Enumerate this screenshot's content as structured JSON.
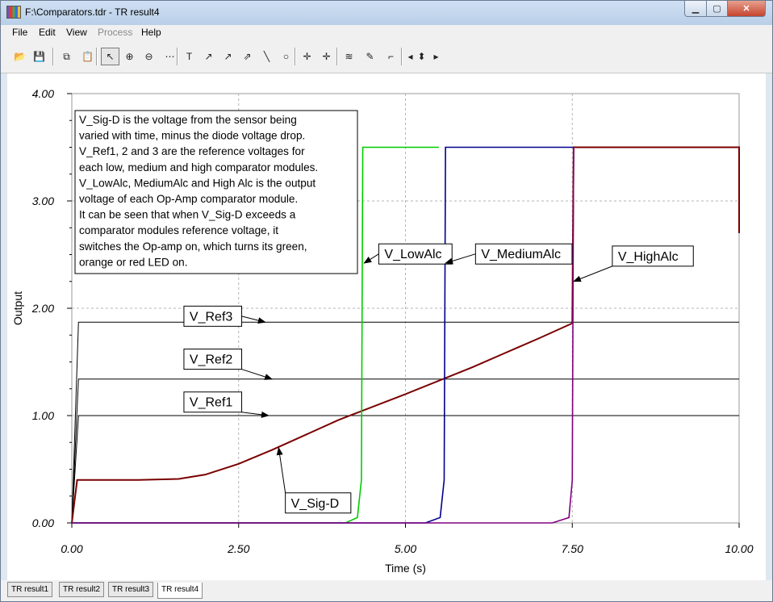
{
  "window": {
    "title": "F:\\Comparators.tdr - TR result4",
    "controls": {
      "minimize": "▁",
      "maximize": "▢",
      "close": "✕"
    }
  },
  "menu": [
    "File",
    "Edit",
    "View",
    "Process",
    "Help"
  ],
  "menu_disabled": [
    "Process"
  ],
  "toolbar": [
    {
      "name": "open-icon",
      "glyph": "📂"
    },
    {
      "name": "save-icon",
      "glyph": "💾"
    },
    {
      "name": "copy-icon",
      "glyph": "⧉"
    },
    {
      "name": "paste-icon",
      "glyph": "📋"
    },
    {
      "name": "pointer-icon",
      "glyph": "↖"
    },
    {
      "name": "zoom-in-icon",
      "glyph": "⊕"
    },
    {
      "name": "zoom-100-icon",
      "glyph": "⊖"
    },
    {
      "name": "grid-icon",
      "glyph": "⋯"
    },
    {
      "name": "text-tool-icon",
      "glyph": "T"
    },
    {
      "name": "label-arrow-icon",
      "glyph": "↗"
    },
    {
      "name": "label-curve-icon",
      "glyph": "↗"
    },
    {
      "name": "label-line-icon",
      "glyph": "⇗"
    },
    {
      "name": "line-tool-icon",
      "glyph": "╲"
    },
    {
      "name": "circle-tool-icon",
      "glyph": "○"
    },
    {
      "name": "cursor-a-icon",
      "glyph": "✛"
    },
    {
      "name": "cursor-b-icon",
      "glyph": "✛"
    },
    {
      "name": "curves-icon",
      "glyph": "≋"
    },
    {
      "name": "probe-icon",
      "glyph": "✎"
    },
    {
      "name": "step-icon",
      "glyph": "⌐"
    },
    {
      "name": "left-arrow-icon",
      "glyph": "◂"
    },
    {
      "name": "up-down-arrow-icon",
      "glyph": "⬍"
    },
    {
      "name": "right-arrow-icon",
      "glyph": "▸"
    }
  ],
  "tabs": [
    "TR result1",
    "TR result2",
    "TR result3",
    "TR result4"
  ],
  "active_tab": "TR result4",
  "annotation": {
    "lines": [
      "V_Sig-D is the voltage from the sensor being",
      "varied with time, minus the diode voltage drop.",
      "V_Ref1, 2 and 3 are the reference voltages for",
      "each low, medium and high comparator modules.",
      "V_LowAlc, MediumAlc and High Alc is the output",
      "voltage of each Op-Amp comparator module.",
      "It can be seen that when V_Sig-D exceeds a",
      "comparator modules reference voltage, it",
      "switches the Op-amp on, which turns its green,",
      "orange or red LED on."
    ]
  },
  "chart_data": {
    "type": "line",
    "xlabel": "Time (s)",
    "ylabel": "Output",
    "xlim": [
      0,
      10
    ],
    "ylim": [
      0,
      4
    ],
    "x_ticks": [
      "0.00",
      "2.50",
      "5.00",
      "7.50",
      "10.00"
    ],
    "y_ticks": [
      "0.00",
      "1.00",
      "2.00",
      "3.00",
      "4.00"
    ],
    "grid": true,
    "series": [
      {
        "name": "V_Ref3",
        "color": "#000000",
        "x": [
          0,
          0.1,
          10
        ],
        "y": [
          0,
          1.87,
          1.87
        ]
      },
      {
        "name": "V_Ref2",
        "color": "#000000",
        "x": [
          0,
          0.1,
          10
        ],
        "y": [
          0,
          1.34,
          1.34
        ]
      },
      {
        "name": "V_Ref1",
        "color": "#000000",
        "x": [
          0,
          0.1,
          10
        ],
        "y": [
          0,
          1.0,
          1.0
        ]
      },
      {
        "name": "V_Sig-D",
        "color": "#7a0000",
        "x": [
          0,
          0.08,
          1.0,
          1.6,
          2.0,
          2.5,
          3.0,
          4.0,
          5.0,
          6.0,
          7.0,
          7.5,
          7.52,
          10,
          10
        ],
        "y": [
          0,
          0.4,
          0.4,
          0.41,
          0.45,
          0.55,
          0.68,
          0.96,
          1.2,
          1.45,
          1.72,
          1.86,
          3.5,
          3.5,
          2.7
        ]
      },
      {
        "name": "V_LowAlc",
        "color": "#00cc00",
        "x": [
          0,
          4.1,
          4.28,
          4.34,
          4.36,
          5.5
        ],
        "y": [
          0,
          0,
          0.05,
          0.4,
          3.5,
          3.5
        ]
      },
      {
        "name": "V_MediumAlc",
        "color": "#00008b",
        "x": [
          0,
          5.3,
          5.52,
          5.58,
          5.6,
          7.52
        ],
        "y": [
          0,
          0,
          0.05,
          0.4,
          3.5,
          3.5
        ]
      },
      {
        "name": "V_HighAlc",
        "color": "#800080",
        "x": [
          0,
          7.2,
          7.45,
          7.5,
          7.52
        ],
        "y": [
          0,
          0,
          0.05,
          0.4,
          3.5
        ]
      }
    ],
    "labels": [
      {
        "text": "V_Ref3",
        "box": [
          1.68,
          2.02
        ],
        "arrow_to": [
          2.9,
          1.87
        ]
      },
      {
        "text": "V_Ref2",
        "box": [
          1.68,
          1.62
        ],
        "arrow_to": [
          3.0,
          1.34
        ]
      },
      {
        "text": "V_Ref1",
        "box": [
          1.68,
          1.22
        ],
        "arrow_to": [
          2.95,
          1.0
        ]
      },
      {
        "text": "V_Sig-D",
        "box": [
          3.2,
          0.28
        ],
        "arrow_to": [
          3.1,
          0.7
        ]
      },
      {
        "text": "V_LowAlc",
        "box": [
          4.6,
          2.6
        ],
        "arrow_to": [
          4.38,
          2.42
        ]
      },
      {
        "text": "V_MediumAlc",
        "box": [
          6.05,
          2.6
        ],
        "arrow_to": [
          5.6,
          2.42
        ]
      },
      {
        "text": "V_HighAlc",
        "box": [
          8.1,
          2.58
        ],
        "arrow_to": [
          7.52,
          2.25
        ]
      }
    ]
  }
}
